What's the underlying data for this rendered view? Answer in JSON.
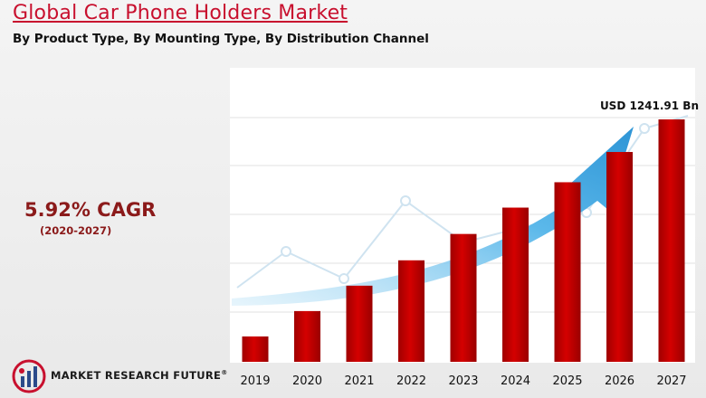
{
  "header": {
    "title": "Global Car Phone Holders Market",
    "subtitle": "By Product Type, By Mounting Type, By Distribution Channel"
  },
  "cagr": {
    "value": "5.92% CAGR",
    "period": "(2020-2027)"
  },
  "footer": {
    "brand": "MARKET RESEARCH FUTURE",
    "registered": "®"
  },
  "colors": {
    "title": "#c8102e",
    "bar": "#c00000",
    "arrow": "#3fa8e0",
    "cagr": "#8b1a1a"
  },
  "chart_data": {
    "type": "bar",
    "categories": [
      "2019",
      "2020",
      "2021",
      "2022",
      "2023",
      "2024",
      "2025",
      "2026",
      "2027"
    ],
    "values": [
      130,
      260,
      390,
      520,
      655,
      790,
      920,
      1075,
      1241.91
    ],
    "ylim": [
      0,
      1241.91
    ],
    "grid": true,
    "annotations": [
      {
        "category": "2027",
        "text": "USD 1241.91 Bn"
      }
    ]
  }
}
